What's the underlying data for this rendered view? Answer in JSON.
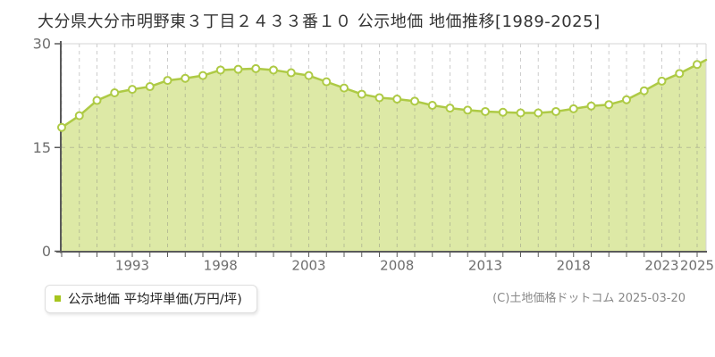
{
  "title": "大分県大分市明野東３丁目２４３３番１０ 公示地価 地価推移[1989-2025]",
  "legend": {
    "label": "公示地価 平均坪単価(万円/坪)",
    "marker_color": "#a6c51e"
  },
  "copyright": "(C)土地価格ドットコム 2025-03-20",
  "chart_data": {
    "type": "area",
    "title": "大分県大分市明野東３丁目２４３３番１０ 公示地価 地価推移[1989-2025]",
    "xlabel": "",
    "ylabel": "万円/坪",
    "ylim": [
      0,
      30
    ],
    "y_ticks": [
      0,
      15,
      30
    ],
    "x_tick_labels": [
      1993,
      1998,
      2003,
      2008,
      2013,
      2018,
      2023,
      2025
    ],
    "grid": true,
    "legend_position": "bottom-left",
    "x": [
      1989,
      1990,
      1991,
      1992,
      1993,
      1994,
      1995,
      1996,
      1997,
      1998,
      1999,
      2000,
      2001,
      2002,
      2003,
      2004,
      2005,
      2006,
      2007,
      2008,
      2009,
      2010,
      2011,
      2012,
      2013,
      2014,
      2015,
      2016,
      2017,
      2018,
      2019,
      2020,
      2021,
      2022,
      2023,
      2024,
      2025
    ],
    "series": [
      {
        "name": "公示地価 平均坪単価(万円/坪)",
        "values": [
          17.9,
          19.6,
          21.8,
          22.9,
          23.4,
          23.8,
          24.7,
          25.0,
          25.4,
          26.2,
          26.3,
          26.4,
          26.2,
          25.8,
          25.4,
          24.5,
          23.6,
          22.7,
          22.2,
          22.0,
          21.7,
          21.1,
          20.7,
          20.4,
          20.2,
          20.1,
          20.0,
          20.0,
          20.2,
          20.6,
          21.0,
          21.2,
          21.9,
          23.2,
          24.6,
          25.7,
          27.0
        ]
      }
    ],
    "colors": {
      "line": "#aeca45",
      "fill": "#dde9a6",
      "point_fill": "#ffffff",
      "point_stroke": "#aeca45",
      "grid": "#c8c8c8",
      "frame": "#d5d5d5",
      "axis": "#5a5a5a",
      "tick_text": "#6e6e6e"
    }
  }
}
